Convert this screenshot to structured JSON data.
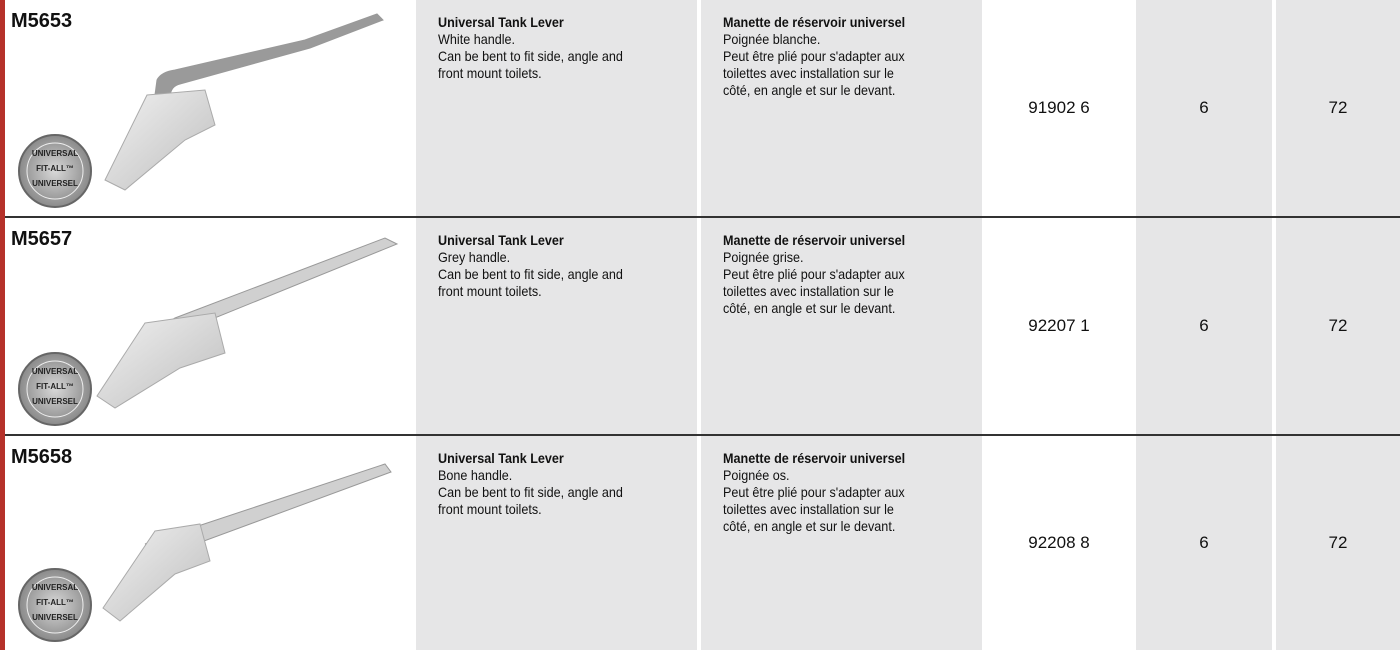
{
  "badge": [
    "UNIVERSAL",
    "FIT-ALL™",
    "UNIVERSEL"
  ],
  "rows": [
    {
      "sku": "M5653",
      "en_title": "Universal Tank Lever",
      "en_lines": [
        "White handle.",
        "Can be bent to fit side, angle and",
        "front mount toilets."
      ],
      "fr_title": "Manette de réservoir universel",
      "fr_lines": [
        "Poignée blanche.",
        "Peut être plié pour s'adapter aux",
        "toilettes avec installation sur le",
        "côté, en angle et sur le devant."
      ],
      "code": "91902 6",
      "qty_a": "6",
      "qty_b": "72"
    },
    {
      "sku": "M5657",
      "en_title": "Universal Tank Lever",
      "en_lines": [
        "Grey handle.",
        "Can be bent to fit side, angle and",
        "front mount toilets."
      ],
      "fr_title": "Manette de réservoir universel",
      "fr_lines": [
        "Poignée grise.",
        "Peut être plié pour s'adapter aux",
        "toilettes avec installation sur le",
        "côté, en angle et sur le devant."
      ],
      "code": "92207 1",
      "qty_a": "6",
      "qty_b": "72"
    },
    {
      "sku": "M5658",
      "en_title": "Universal Tank Lever",
      "en_lines": [
        "Bone handle.",
        "Can be bent to fit side, angle and",
        "front mount toilets."
      ],
      "fr_title": "Manette de réservoir universel",
      "fr_lines": [
        "Poignée os.",
        "Peut être plié pour s'adapter aux",
        "toilettes avec installation sur le",
        "côté, en angle et sur le devant."
      ],
      "code": "92208 8",
      "qty_a": "6",
      "qty_b": "72"
    }
  ]
}
